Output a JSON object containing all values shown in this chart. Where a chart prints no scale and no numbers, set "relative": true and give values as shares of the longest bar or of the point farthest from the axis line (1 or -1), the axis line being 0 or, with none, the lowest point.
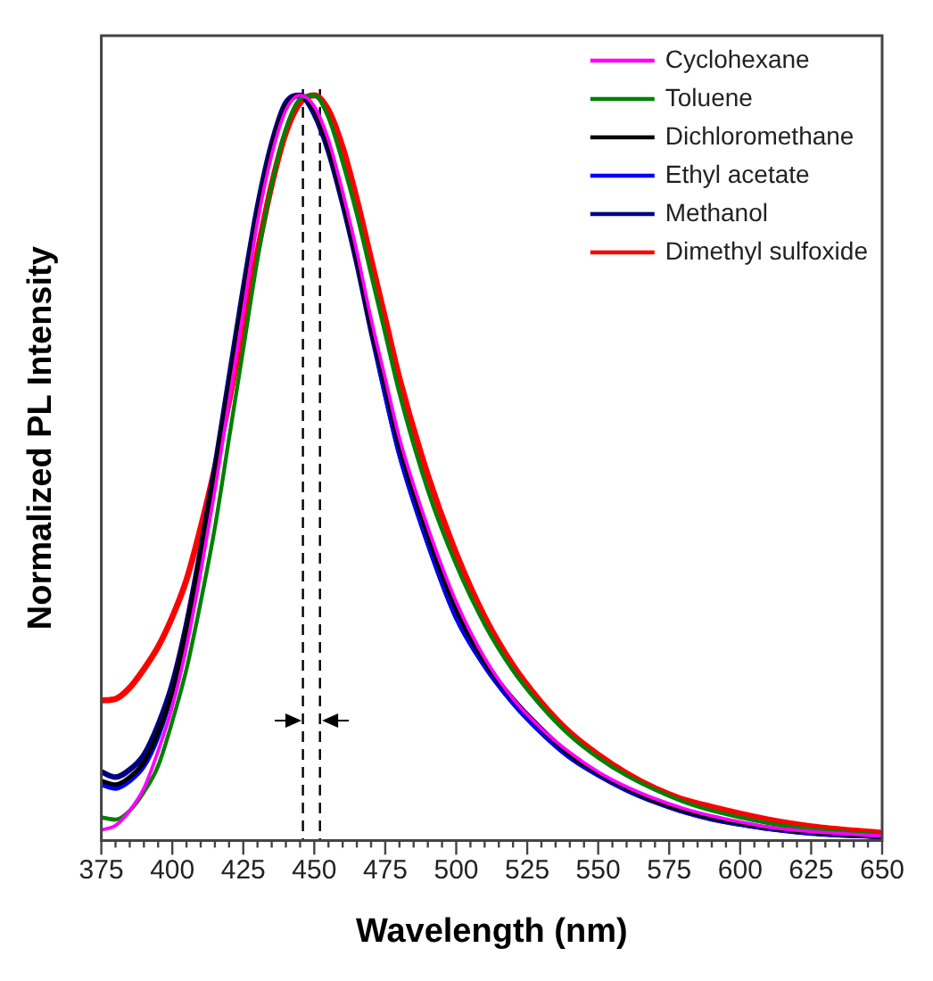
{
  "chart_data": {
    "type": "line",
    "xlabel": "Wavelength (nm)",
    "ylabel": "Normalized PL Intensity",
    "relative": true,
    "legend": "top right",
    "grid": false,
    "marker": "none",
    "line_style": "solid",
    "x": [
      375,
      380,
      385,
      390,
      395,
      400,
      405,
      410,
      415,
      420,
      425,
      430,
      435,
      440,
      445,
      450,
      455,
      460,
      465,
      470,
      475,
      480,
      490,
      500,
      510,
      520,
      530,
      540,
      550,
      560,
      570,
      580,
      590,
      600,
      610,
      625,
      650
    ],
    "xlim": [
      375,
      650
    ],
    "xticks": [
      375,
      {
        "value": 380,
        "label": null
      },
      {
        "value": 385,
        "label": null
      },
      {
        "value": 390,
        "label": null
      },
      {
        "value": 395,
        "label": null
      },
      400,
      {
        "value": 405,
        "label": null
      },
      {
        "value": 410,
        "label": null
      },
      {
        "value": 415,
        "label": null
      },
      {
        "value": 420,
        "label": null
      },
      425,
      {
        "value": 430,
        "label": null
      },
      {
        "value": 435,
        "label": null
      },
      {
        "value": 440,
        "label": null
      },
      {
        "value": 445,
        "label": null
      },
      450,
      {
        "value": 455,
        "label": null
      },
      {
        "value": 460,
        "label": null
      },
      {
        "value": 465,
        "label": null
      },
      {
        "value": 470,
        "label": null
      },
      475,
      {
        "value": 480,
        "label": null
      },
      {
        "value": 485,
        "label": null
      },
      {
        "value": 490,
        "label": null
      },
      {
        "value": 495,
        "label": null
      },
      500,
      {
        "value": 505,
        "label": null
      },
      {
        "value": 510,
        "label": null
      },
      {
        "value": 515,
        "label": null
      },
      {
        "value": 520,
        "label": null
      },
      525,
      {
        "value": 530,
        "label": null
      },
      {
        "value": 535,
        "label": null
      },
      {
        "value": 540,
        "label": null
      },
      {
        "value": 545,
        "label": null
      },
      550,
      {
        "value": 555,
        "label": null
      },
      {
        "value": 560,
        "label": null
      },
      {
        "value": 565,
        "label": null
      },
      {
        "value": 570,
        "label": null
      },
      575,
      {
        "value": 580,
        "label": null
      },
      {
        "value": 585,
        "label": null
      },
      {
        "value": 590,
        "label": null
      },
      {
        "value": 595,
        "label": null
      },
      600,
      {
        "value": 605,
        "label": null
      },
      {
        "value": 610,
        "label": null
      },
      {
        "value": 615,
        "label": null
      },
      {
        "value": 620,
        "label": null
      },
      625,
      {
        "value": 630,
        "label": null
      },
      {
        "value": 635,
        "label": null
      },
      {
        "value": 640,
        "label": null
      },
      {
        "value": 645,
        "label": null
      },
      650
    ],
    "series": [
      {
        "name": "Cyclohexane",
        "color": "#ff00ff",
        "values": [
          0.014,
          0.02,
          0.04,
          0.07,
          0.12,
          0.18,
          0.26,
          0.36,
          0.47,
          0.59,
          0.71,
          0.83,
          0.92,
          0.98,
          1.0,
          0.985,
          0.94,
          0.87,
          0.79,
          0.7,
          0.62,
          0.54,
          0.42,
          0.32,
          0.245,
          0.19,
          0.15,
          0.118,
          0.092,
          0.072,
          0.056,
          0.043,
          0.033,
          0.025,
          0.018,
          0.012,
          0.006
        ]
      },
      {
        "name": "Toluene",
        "color": "#008000",
        "values": [
          0.031,
          0.028,
          0.04,
          0.065,
          0.1,
          0.16,
          0.23,
          0.32,
          0.42,
          0.54,
          0.66,
          0.78,
          0.88,
          0.955,
          0.995,
          1.0,
          0.97,
          0.91,
          0.84,
          0.76,
          0.68,
          0.6,
          0.47,
          0.37,
          0.29,
          0.228,
          0.18,
          0.141,
          0.111,
          0.087,
          0.068,
          0.052,
          0.04,
          0.031,
          0.023,
          0.015,
          0.007
        ]
      },
      {
        "name": "Dichloromethane",
        "color": "#000000",
        "values": [
          0.08,
          0.075,
          0.085,
          0.105,
          0.145,
          0.2,
          0.285,
          0.385,
          0.495,
          0.61,
          0.73,
          0.84,
          0.93,
          0.985,
          1.0,
          0.98,
          0.93,
          0.86,
          0.78,
          0.69,
          0.61,
          0.53,
          0.41,
          0.31,
          0.24,
          0.19,
          0.15,
          0.115,
          0.09,
          0.07,
          0.053,
          0.04,
          0.03,
          0.023,
          0.017,
          0.011,
          0.005
        ]
      },
      {
        "name": "Ethyl acetate",
        "color": "#0000ff",
        "values": [
          0.075,
          0.07,
          0.08,
          0.1,
          0.14,
          0.2,
          0.28,
          0.38,
          0.49,
          0.61,
          0.73,
          0.84,
          0.93,
          0.985,
          1.0,
          0.98,
          0.93,
          0.86,
          0.78,
          0.69,
          0.6,
          0.52,
          0.4,
          0.3,
          0.235,
          0.185,
          0.145,
          0.112,
          0.088,
          0.068,
          0.052,
          0.039,
          0.029,
          0.022,
          0.016,
          0.01,
          0.005
        ]
      },
      {
        "name": "Methanol",
        "color": "#000080",
        "values": [
          0.092,
          0.085,
          0.095,
          0.115,
          0.155,
          0.21,
          0.29,
          0.39,
          0.5,
          0.62,
          0.74,
          0.85,
          0.935,
          0.99,
          1.0,
          0.975,
          0.925,
          0.855,
          0.775,
          0.685,
          0.6,
          0.52,
          0.4,
          0.3,
          0.235,
          0.185,
          0.145,
          0.112,
          0.088,
          0.068,
          0.052,
          0.039,
          0.029,
          0.022,
          0.016,
          0.01,
          0.005
        ]
      },
      {
        "name": "Dimethyl sulfoxide",
        "color": "#ff0000",
        "values": [
          0.188,
          0.19,
          0.205,
          0.23,
          0.26,
          0.3,
          0.35,
          0.42,
          0.5,
          0.59,
          0.69,
          0.79,
          0.88,
          0.95,
          0.99,
          1.0,
          0.98,
          0.93,
          0.86,
          0.78,
          0.7,
          0.62,
          0.49,
          0.385,
          0.3,
          0.235,
          0.185,
          0.145,
          0.115,
          0.09,
          0.07,
          0.055,
          0.045,
          0.036,
          0.028,
          0.019,
          0.01
        ]
      }
    ],
    "ref_lines": [
      {
        "axis": "x",
        "value": 446,
        "color": "#000000",
        "line_style": "dashed"
      },
      {
        "axis": "x",
        "value": 452,
        "color": "#000000",
        "line_style": "dashed"
      }
    ]
  }
}
